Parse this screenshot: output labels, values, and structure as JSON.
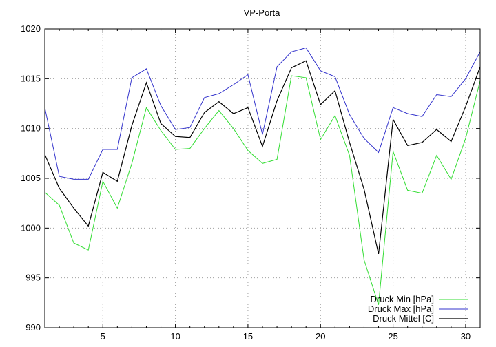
{
  "chart_data": {
    "type": "line",
    "title": "VP-Porta",
    "xlabel": "",
    "ylabel": "",
    "xlim": [
      1,
      31
    ],
    "ylim": [
      990,
      1020
    ],
    "xticks": [
      5,
      10,
      15,
      20,
      25,
      30
    ],
    "yticks": [
      990,
      995,
      1000,
      1005,
      1010,
      1015,
      1020
    ],
    "grid": true,
    "legend_position": "bottom-right",
    "x": [
      1,
      2,
      3,
      4,
      5,
      6,
      7,
      8,
      9,
      10,
      11,
      12,
      13,
      14,
      15,
      16,
      17,
      18,
      19,
      20,
      21,
      22,
      23,
      24,
      25,
      26,
      27,
      28,
      29,
      30,
      31
    ],
    "series": [
      {
        "name": "Druck Min [hPa]",
        "color": "#33dd33",
        "values": [
          1003.6,
          1002.3,
          998.5,
          997.8,
          1004.7,
          1002.0,
          1006.5,
          1012.1,
          1009.8,
          1007.9,
          1008.0,
          1010.0,
          1011.8,
          1010.0,
          1007.8,
          1006.5,
          1006.9,
          1015.3,
          1015.1,
          1008.9,
          1011.3,
          1007.3,
          996.8,
          992.3,
          1007.7,
          1003.8,
          1003.5,
          1007.3,
          1004.9,
          1009.0,
          1014.8
        ]
      },
      {
        "name": "Druck Max [hPa]",
        "color": "#3333cc",
        "values": [
          1012.1,
          1005.2,
          1004.9,
          1004.9,
          1007.9,
          1007.9,
          1015.1,
          1016.0,
          1012.3,
          1009.9,
          1010.1,
          1013.1,
          1013.5,
          1014.4,
          1015.4,
          1009.4,
          1016.2,
          1017.7,
          1018.1,
          1015.8,
          1015.2,
          1011.4,
          1009.0,
          1007.6,
          1012.1,
          1011.5,
          1011.2,
          1013.4,
          1013.2,
          1015.0,
          1017.7
        ]
      },
      {
        "name": "Druck Mittel [C]",
        "color": "#000000",
        "values": [
          1007.4,
          1004.0,
          1002.0,
          1000.2,
          1005.6,
          1004.7,
          1010.3,
          1014.6,
          1010.5,
          1009.2,
          1009.1,
          1011.6,
          1012.7,
          1011.5,
          1012.1,
          1008.2,
          1012.8,
          1016.1,
          1016.8,
          1012.4,
          1013.8,
          1008.6,
          1003.9,
          997.4,
          1010.9,
          1008.3,
          1008.6,
          1009.9,
          1008.7,
          1012.2,
          1016.2
        ]
      }
    ]
  }
}
